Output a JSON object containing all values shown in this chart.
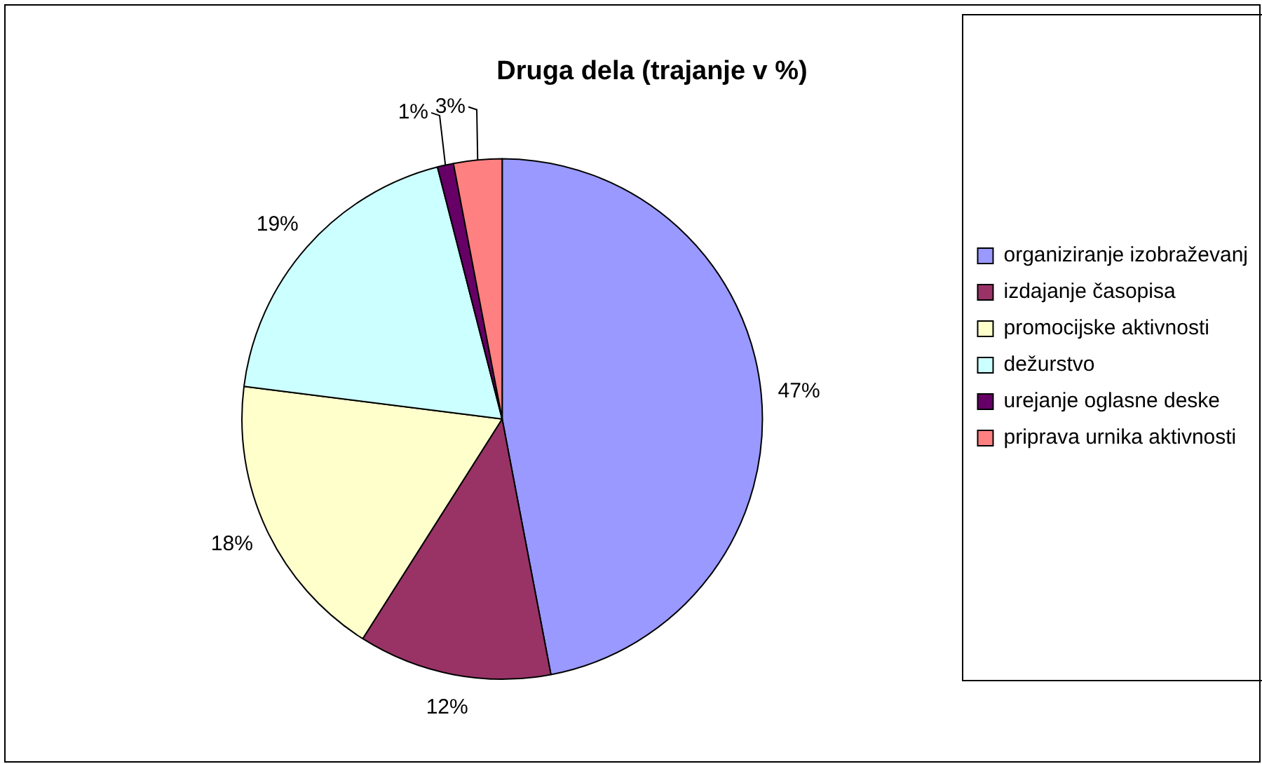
{
  "chart_data": {
    "type": "pie",
    "title": "Druga dela (trajanje v %)",
    "categories": [
      "organiziranje izobraževanj",
      "izdajanje časopisa",
      "promocijske aktivnosti",
      "dežurstvo",
      "urejanje oglasne deske",
      "priprava urnika aktivnosti"
    ],
    "values": [
      47,
      12,
      18,
      19,
      1,
      3
    ],
    "colors": [
      "#9999ff",
      "#993366",
      "#ffffcc",
      "#ccffff",
      "#660066",
      "#ff8080"
    ],
    "value_labels": [
      "47%",
      "12%",
      "18%",
      "19%",
      "1%",
      "3%"
    ],
    "legend": "right"
  }
}
